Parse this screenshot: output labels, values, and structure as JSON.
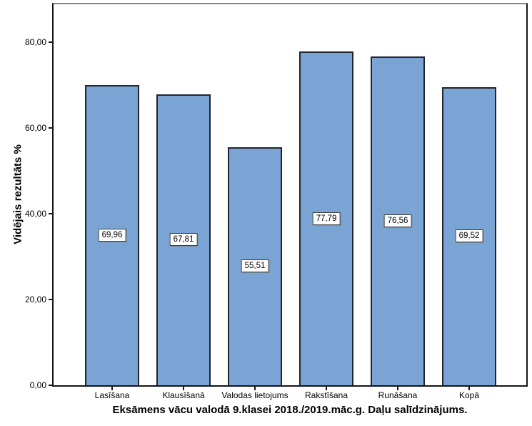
{
  "chart_data": {
    "type": "bar",
    "title": "",
    "categories": [
      "Lasīšana",
      "Klausīšanā",
      "Valodas lietojums",
      "Rakstīšana",
      "Runāšana",
      "Kopā"
    ],
    "values": [
      69.96,
      67.81,
      55.51,
      77.79,
      76.56,
      69.52
    ],
    "value_labels": [
      "69,96",
      "67,81",
      "55,51",
      "77,79",
      "76,56",
      "69,52"
    ],
    "xlabel": "Eksāmens vācu valodā 9.klasei 2018./2019.māc.g. Daļu salīdzinājums.",
    "ylabel": "Vidējais rezultāts %",
    "ylim": [
      0,
      88.8
    ],
    "yticks": [
      0,
      20,
      40,
      60,
      80
    ],
    "ytick_labels": [
      "0,00",
      "20,00",
      "40,00",
      "60,00",
      "80,00"
    ],
    "grid": false,
    "legend": null,
    "colors": {
      "bar_fill": "#7aa4d4",
      "bar_border": "#21252b",
      "axis": "#151515",
      "frame_top": "#848484",
      "background": "#ffffff"
    }
  }
}
